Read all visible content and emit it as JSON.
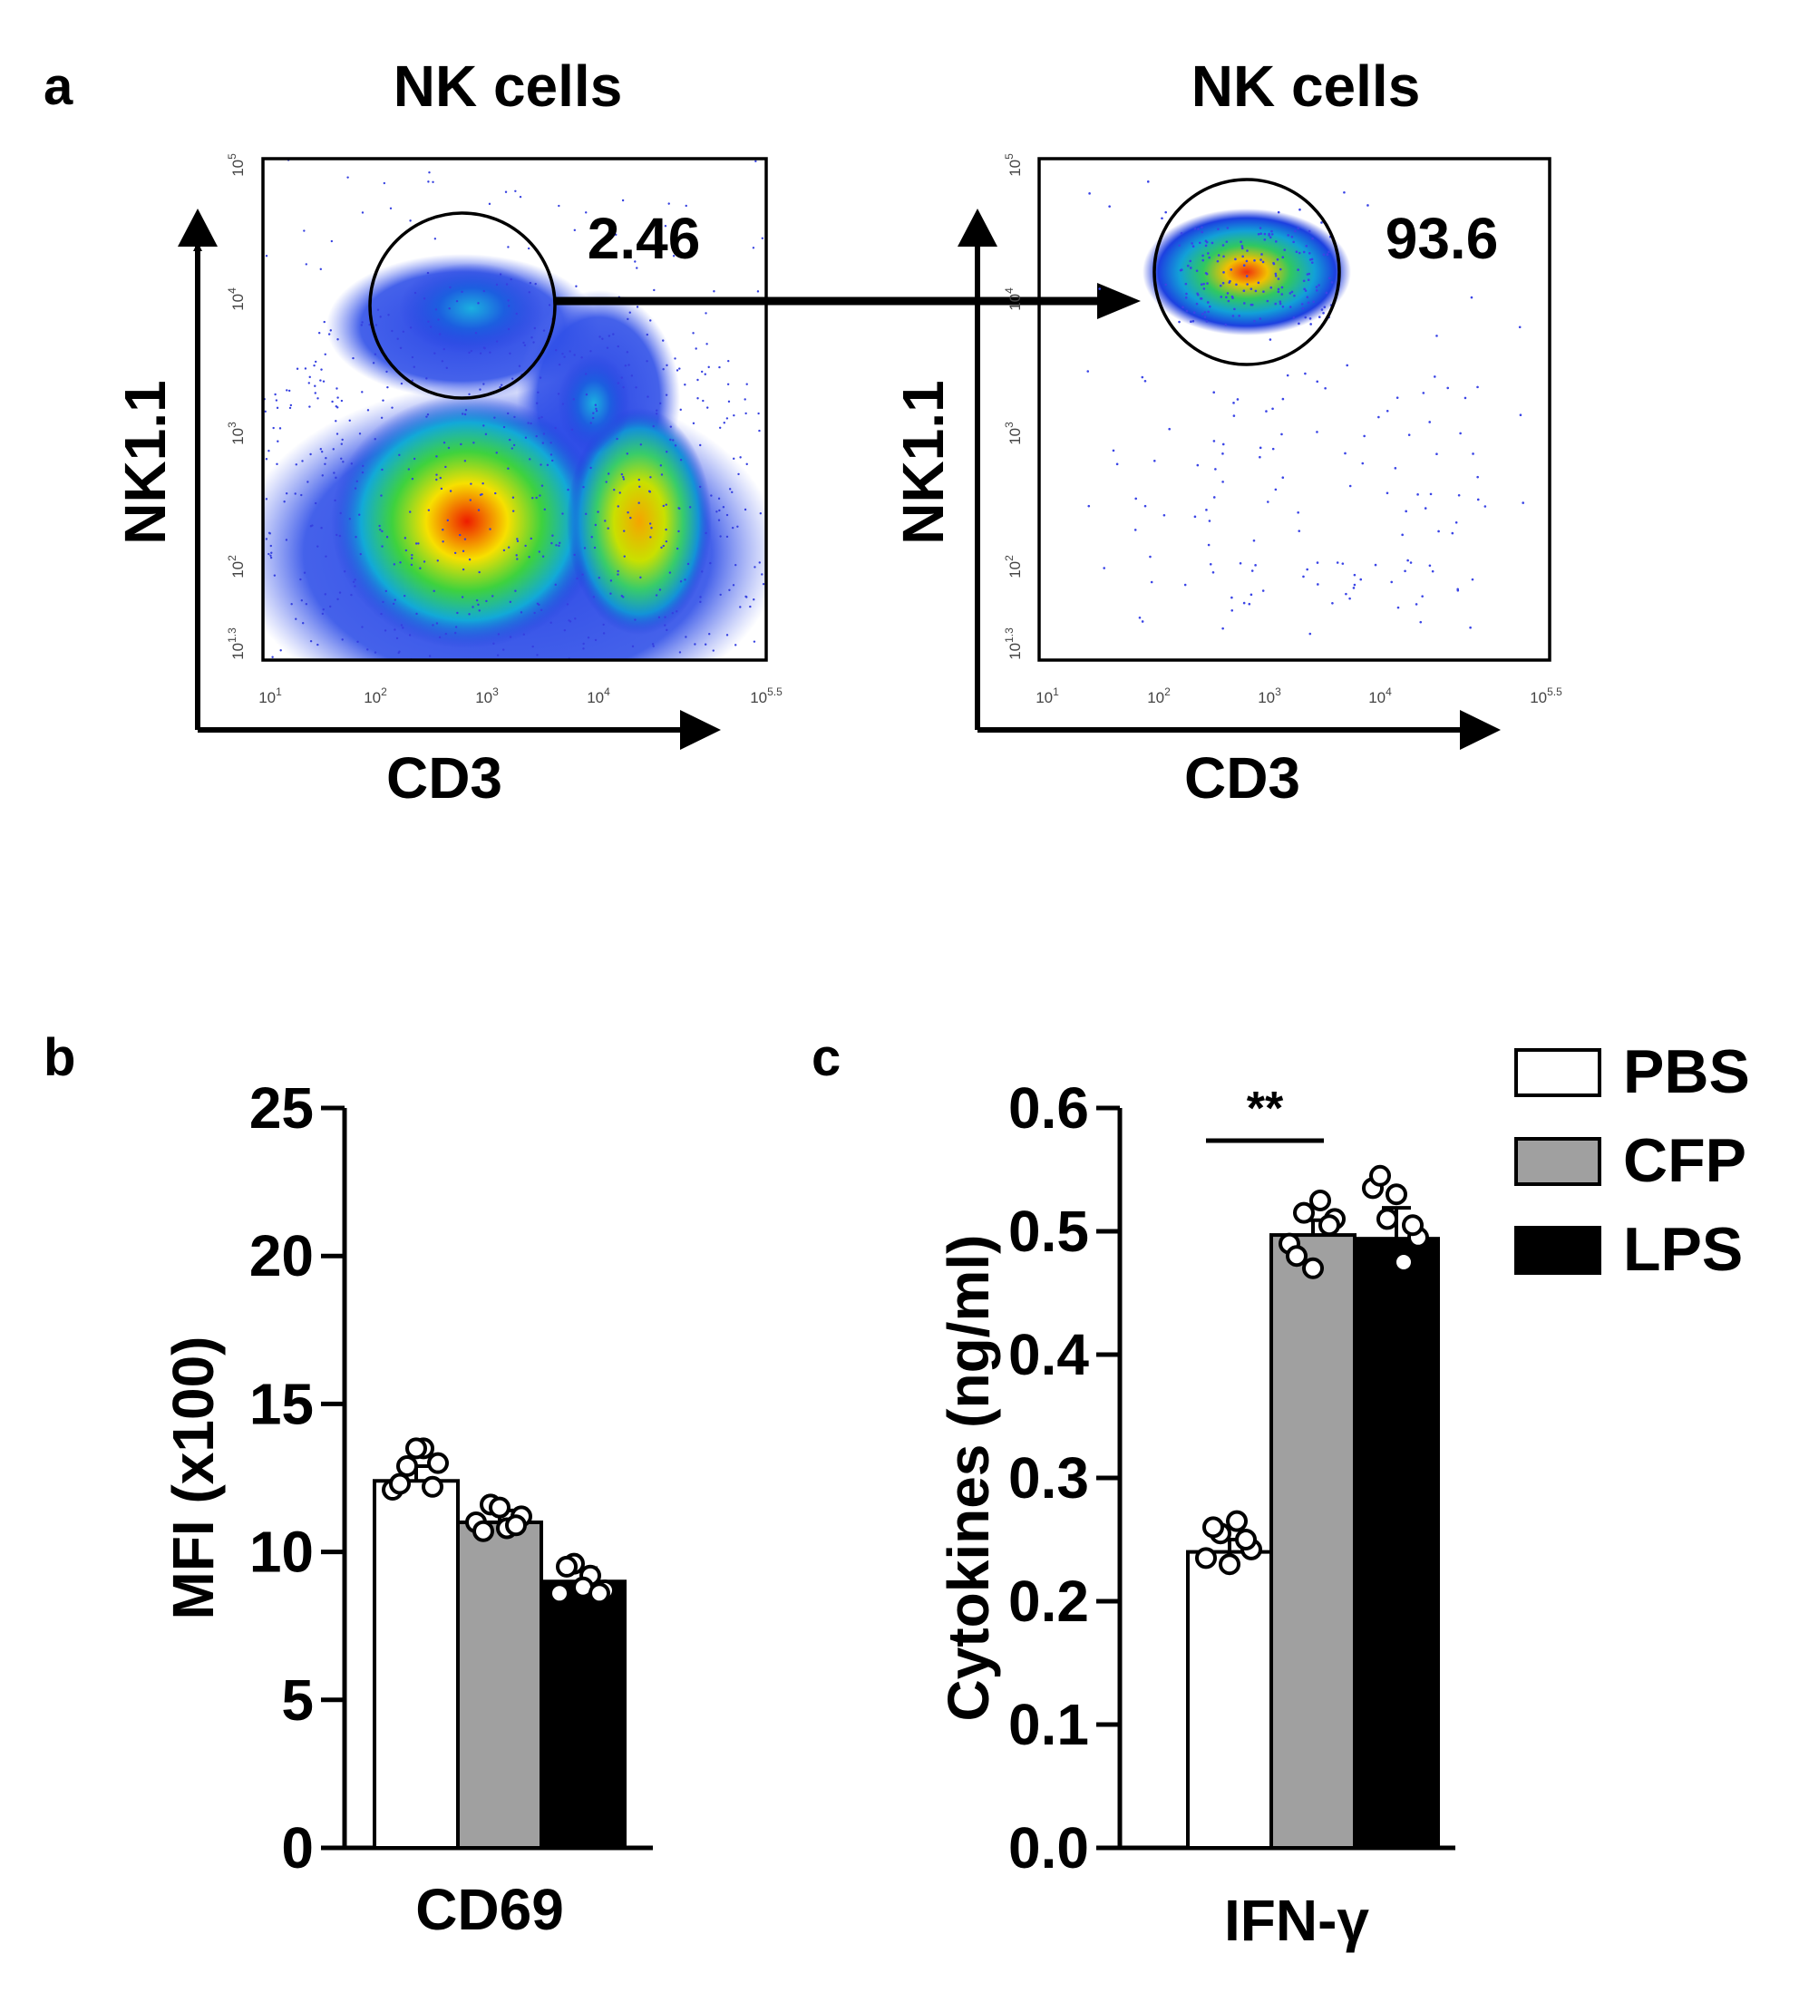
{
  "panels": {
    "a": {
      "letter": "a",
      "plots": [
        {
          "title": "NK cells",
          "gate_value": "2.46",
          "xlabel": "CD3",
          "ylabel": "NK1.1",
          "x_ticks": [
            "10^1",
            "10^2",
            "10^3",
            "10^4",
            "10^5.5"
          ],
          "y_ticks": [
            "10^1.3",
            "10^2",
            "10^3",
            "10^4",
            "10^5"
          ]
        },
        {
          "title": "NK cells",
          "gate_value": "93.6",
          "xlabel": "CD3",
          "ylabel": "NK1.1",
          "x_ticks": [
            "10^1",
            "10^2",
            "10^3",
            "10^4",
            "10^5.5"
          ],
          "y_ticks": [
            "10^1.3",
            "10^2",
            "10^3",
            "10^4",
            "10^5"
          ]
        }
      ]
    },
    "b": {
      "letter": "b"
    },
    "c": {
      "letter": "c"
    }
  },
  "legend": [
    {
      "label": "PBS",
      "color": "#ffffff"
    },
    {
      "label": "CFP",
      "color": "#a0a0a0"
    },
    {
      "label": "LPS",
      "color": "#000000"
    }
  ],
  "chart_data": [
    {
      "type": "bar",
      "panel": "b",
      "title": "",
      "xlabel": "CD69",
      "ylabel": "MFI (x100)",
      "ylim": [
        0,
        25
      ],
      "yticks": [
        "0",
        "5",
        "10",
        "15",
        "20",
        "25"
      ],
      "categories": [
        "PBS",
        "CFP",
        "LPS"
      ],
      "values": [
        12.4,
        11.0,
        9.0
      ],
      "errors": [
        0.5,
        0.4,
        0.45
      ],
      "colors": [
        "#ffffff",
        "#a0a0a0",
        "#000000"
      ],
      "points": [
        [
          12.1,
          12.9,
          13.5,
          13.0,
          12.3,
          13.5,
          12.2
        ],
        [
          11.0,
          11.6,
          10.8,
          11.2,
          10.7,
          11.5,
          10.9
        ],
        [
          8.6,
          9.6,
          9.2,
          8.7,
          9.5,
          8.8,
          8.6
        ]
      ]
    },
    {
      "type": "bar",
      "panel": "c",
      "title": "",
      "xlabel": "IFN-γ",
      "ylabel": "Cytokines (ng/ml)",
      "ylim": [
        0,
        0.6
      ],
      "yticks": [
        "0.0",
        "0.1",
        "0.2",
        "0.3",
        "0.4",
        "0.5",
        "0.6"
      ],
      "categories": [
        "PBS",
        "CFP",
        "LPS"
      ],
      "values": [
        0.24,
        0.497,
        0.494
      ],
      "errors": [
        0.01,
        0.012,
        0.025
      ],
      "colors": [
        "#ffffff",
        "#a0a0a0",
        "#000000"
      ],
      "significance": "**",
      "points": [
        [
          0.235,
          0.255,
          0.265,
          0.242,
          0.26,
          0.23,
          0.25
        ],
        [
          0.49,
          0.515,
          0.525,
          0.51,
          0.48,
          0.47,
          0.505
        ],
        [
          0.535,
          0.51,
          0.475,
          0.495,
          0.545,
          0.53,
          0.505
        ]
      ]
    }
  ]
}
